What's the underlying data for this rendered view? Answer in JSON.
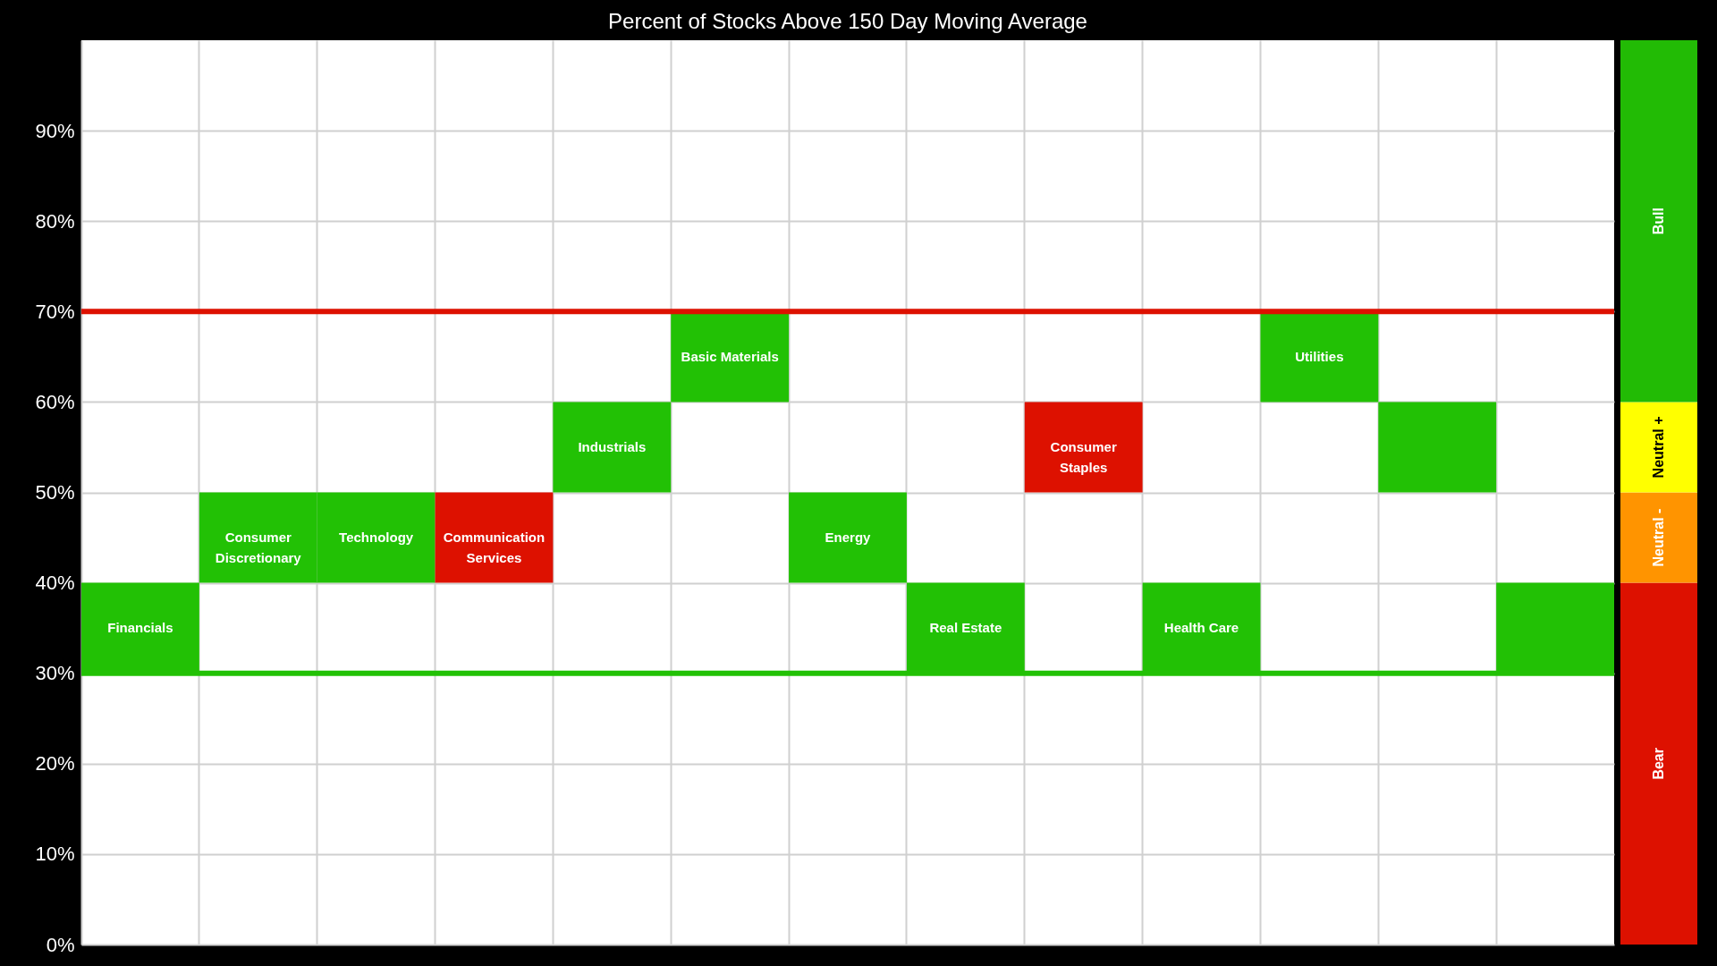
{
  "chart_data": [
    {
      "type": "bar",
      "title": "Percent of Stocks Above 150 Day Moving Average",
      "categories": [
        "Financials",
        "Consumer Discretionary",
        "Technology",
        "Communication Services",
        "Industrials",
        "Basic Materials",
        "Energy",
        "Real Estate",
        "Consumer Staples",
        "Health Care",
        "Utilities",
        null,
        null
      ],
      "values": [
        10,
        10,
        10,
        10,
        10,
        10,
        10,
        10,
        10,
        10,
        10,
        10,
        10
      ],
      "base": [
        30,
        40,
        40,
        40,
        50,
        60,
        40,
        30,
        50,
        30,
        60,
        50,
        30
      ],
      "colors": [
        "#22c105",
        "#22c105",
        "#22c105",
        "#dd1100",
        "#22c105",
        "#22c105",
        "#22c105",
        "#22c105",
        "#dd1100",
        "#22c105",
        "#22c105",
        "#22c105",
        "#22c105"
      ],
      "ylim": [
        0,
        100
      ],
      "yticks": [
        {
          "value": 0,
          "label": "0%"
        },
        {
          "value": 10,
          "label": "10%"
        },
        {
          "value": 20,
          "label": "20%"
        },
        {
          "value": 30,
          "label": "30%"
        },
        {
          "value": 40,
          "label": "40%"
        },
        {
          "value": 50,
          "label": "50%"
        },
        {
          "value": 60,
          "label": "60%"
        },
        {
          "value": 70,
          "label": "70%"
        },
        {
          "value": 80,
          "label": "80%"
        },
        {
          "value": 90,
          "label": "90%"
        }
      ],
      "grid": true,
      "tick_labels": "y",
      "ref_lines": [
        {
          "axis": "y",
          "value": 70,
          "color": "#dd1100"
        },
        {
          "axis": "y",
          "value": 30,
          "color": "#22c105"
        }
      ]
    },
    {
      "type": "bar",
      "stacked": true,
      "categories": [
        null
      ],
      "series": [
        {
          "name": "Bear",
          "color": "#dd1100",
          "values": [
            40
          ]
        },
        {
          "name": "Neutral -",
          "color": "#ff9400",
          "values": [
            10
          ]
        },
        {
          "name": "Neutral +",
          "color": "#ffff00",
          "values": [
            10
          ]
        },
        {
          "name": "Bull",
          "color": "#22bb05",
          "values": [
            40
          ]
        }
      ],
      "ylim": [
        0,
        100
      ],
      "tick_labels": false
    }
  ]
}
